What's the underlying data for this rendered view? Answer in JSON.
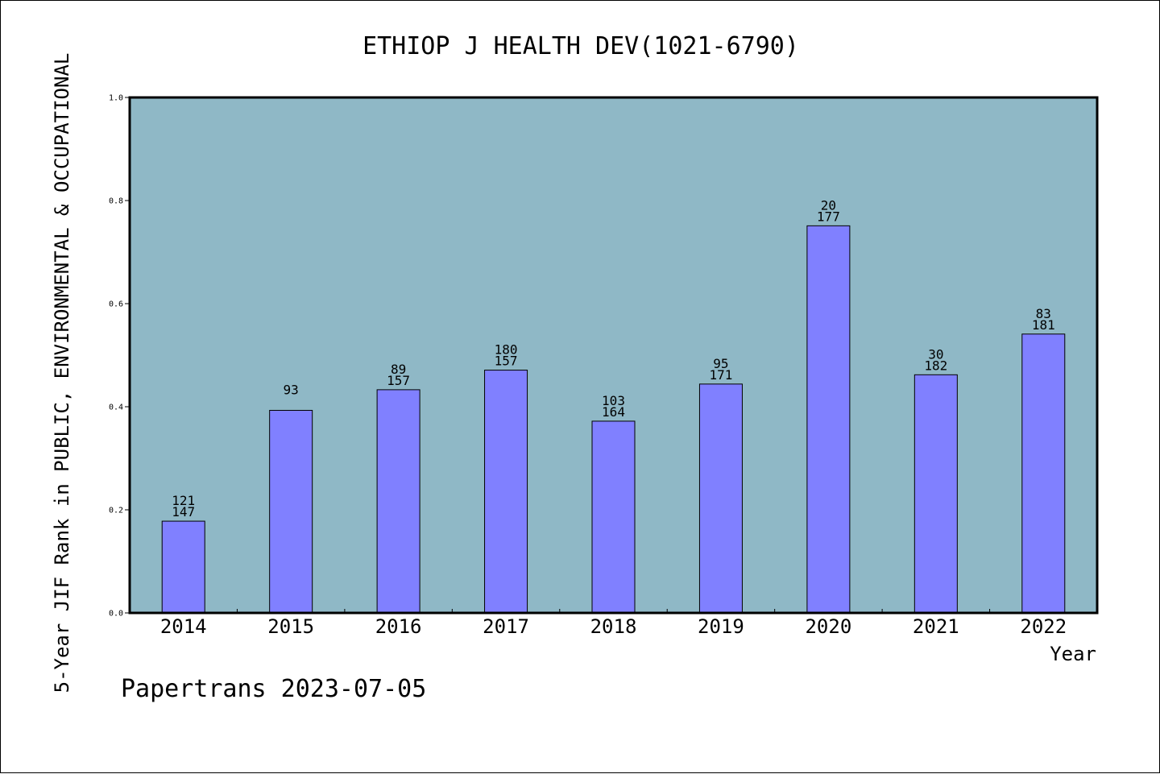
{
  "chart_data": {
    "type": "bar",
    "title": "ETHIOP J HEALTH DEV(1021-6790)",
    "xlabel": "Year",
    "ylabel": "5-Year JIF Rank in PUBLIC, ENVIRONMENTAL & OCCUPATIONAL",
    "ylim": [
      0.0,
      1.0
    ],
    "yticks": [
      "0.0",
      "0.2",
      "0.4",
      "0.6",
      "0.8",
      "1.0"
    ],
    "categories": [
      "2014",
      "2015",
      "2016",
      "2017",
      "2018",
      "2019",
      "2020",
      "2021",
      "2022"
    ],
    "values": [
      0.178,
      0.393,
      0.433,
      0.471,
      0.372,
      0.444,
      0.751,
      0.462,
      0.541
    ],
    "labels_top": [
      "121",
      "93",
      "89",
      "180",
      "103",
      "95",
      "20",
      "30",
      "83"
    ],
    "labels_bottom": [
      "147",
      "",
      "157",
      "157",
      "164",
      "171",
      "177",
      "182",
      "181"
    ],
    "bar_color": "#8080ff",
    "plot_background": "#8fb8c6",
    "grid": false,
    "legend": "none"
  },
  "footer": "Papertrans 2023-07-05"
}
